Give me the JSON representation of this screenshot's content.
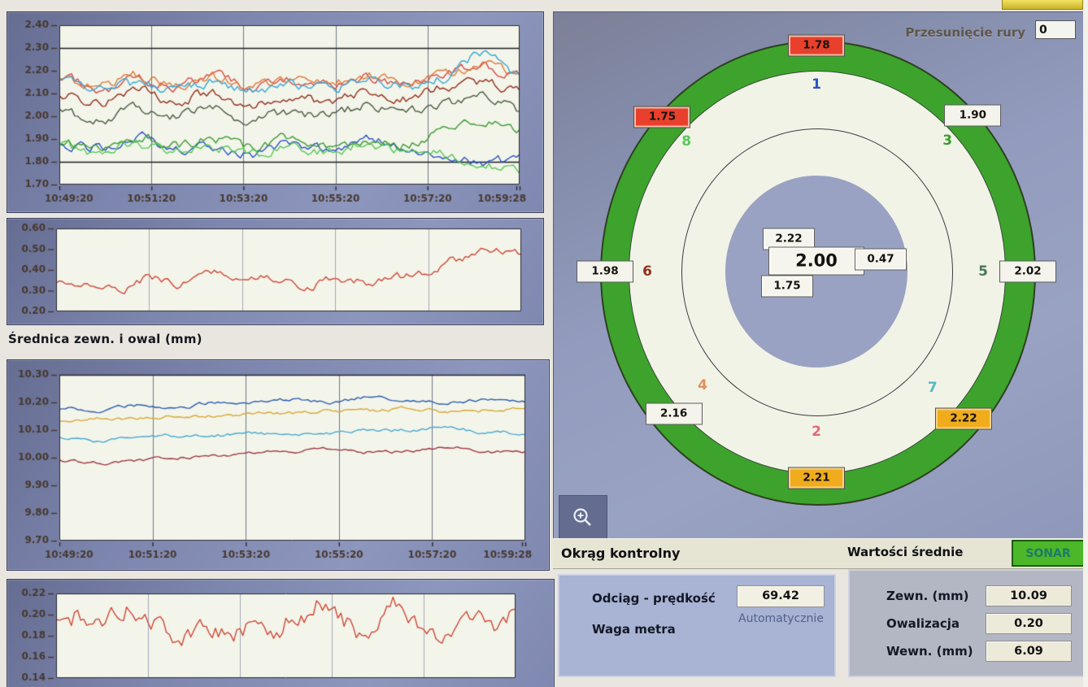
{
  "charts": {
    "xticks": [
      "10:49:20",
      "10:51:20",
      "10:53:20",
      "10:55:20",
      "10:57:20",
      "10:59:28"
    ],
    "wall_thickness": {
      "type": "line",
      "ylim": [
        1.7,
        2.4
      ],
      "yticks": [
        "2.40",
        "2.30",
        "2.20",
        "2.10",
        "2.00",
        "1.90",
        "1.80",
        "1.70"
      ],
      "dark_gridlines": [
        2.3,
        1.8
      ],
      "noise_amp": 0.022,
      "series": [
        {
          "name": "point-1",
          "color": "#2b52c8",
          "values": [
            1.88,
            1.86,
            1.91,
            1.85,
            1.87,
            1.83,
            1.88,
            1.85,
            1.9,
            1.87,
            1.83,
            1.79,
            1.81
          ]
        },
        {
          "name": "point-2",
          "color": "#d84a48",
          "values": [
            2.17,
            2.12,
            2.16,
            2.13,
            2.18,
            2.13,
            2.16,
            2.14,
            2.17,
            2.15,
            2.19,
            2.22,
            2.18
          ]
        },
        {
          "name": "point-3",
          "color": "#3c9a32",
          "values": [
            1.89,
            1.86,
            1.91,
            1.87,
            1.9,
            1.86,
            1.91,
            1.88,
            1.9,
            1.87,
            1.93,
            1.97,
            1.94
          ]
        },
        {
          "name": "point-4",
          "color": "#e07838",
          "values": [
            2.16,
            2.13,
            2.18,
            2.14,
            2.17,
            2.13,
            2.16,
            2.14,
            2.18,
            2.15,
            2.19,
            2.22,
            2.19
          ]
        },
        {
          "name": "point-5",
          "color": "#4a5a40",
          "values": [
            2.02,
            1.98,
            2.04,
            2.0,
            2.03,
            1.98,
            2.02,
            2.0,
            2.05,
            2.02,
            2.06,
            2.09,
            2.03
          ]
        },
        {
          "name": "point-6",
          "color": "#94301e",
          "values": [
            2.1,
            2.06,
            2.12,
            2.07,
            2.1,
            2.05,
            2.09,
            2.06,
            2.1,
            2.08,
            2.12,
            2.15,
            2.1
          ]
        },
        {
          "name": "point-7",
          "color": "#38a8d8",
          "values": [
            2.15,
            2.12,
            2.14,
            2.12,
            2.15,
            2.11,
            2.14,
            2.12,
            2.16,
            2.13,
            2.17,
            2.27,
            2.19
          ]
        },
        {
          "name": "point-8",
          "color": "#58c858",
          "values": [
            1.86,
            1.83,
            1.88,
            1.84,
            1.87,
            1.83,
            1.87,
            1.84,
            1.88,
            1.85,
            1.83,
            1.78,
            1.76
          ]
        }
      ]
    },
    "oval_trend": {
      "type": "line",
      "ylim": [
        0.2,
        0.6
      ],
      "yticks": [
        "0.60",
        "0.50",
        "0.40",
        "0.30",
        "0.20"
      ],
      "dark_gridlines": [],
      "noise_amp": 0.02,
      "series": [
        {
          "name": "owal",
          "color": "#d04838",
          "values": [
            0.33,
            0.34,
            0.3,
            0.36,
            0.33,
            0.39,
            0.34,
            0.36,
            0.31,
            0.36,
            0.34,
            0.37,
            0.39,
            0.45,
            0.5,
            0.48
          ]
        }
      ]
    },
    "diameter": {
      "label": "Średnica zewn. i owal (mm)",
      "type": "line",
      "ylim": [
        9.7,
        10.3
      ],
      "yticks": [
        "10.30",
        "10.20",
        "10.10",
        "10.00",
        "9.90",
        "9.80",
        "9.70"
      ],
      "dark_gridlines": [
        10.3
      ],
      "noise_amp": 0.006,
      "series": [
        {
          "name": "zewn-max",
          "color": "#2c5cb0",
          "values": [
            10.18,
            10.17,
            10.19,
            10.18,
            10.2,
            10.2,
            10.21,
            10.2,
            10.22,
            10.21,
            10.2,
            10.21,
            10.2
          ]
        },
        {
          "name": "zewn-avg",
          "color": "#d8a838",
          "values": [
            10.13,
            10.14,
            10.14,
            10.15,
            10.15,
            10.16,
            10.16,
            10.17,
            10.17,
            10.18,
            10.17,
            10.17,
            10.18
          ]
        },
        {
          "name": "zewn-min",
          "color": "#48a8d0",
          "values": [
            10.07,
            10.06,
            10.08,
            10.08,
            10.08,
            10.09,
            10.08,
            10.09,
            10.1,
            10.1,
            10.11,
            10.09,
            10.09
          ]
        },
        {
          "name": "nominal",
          "color": "#a03848",
          "values": [
            9.99,
            9.98,
            9.99,
            10.0,
            10.01,
            10.02,
            10.02,
            10.03,
            10.02,
            10.02,
            10.04,
            10.02,
            10.02
          ]
        }
      ]
    },
    "weight_trend": {
      "type": "line",
      "ylim": [
        0.14,
        0.22
      ],
      "yticks": [
        "0.22",
        "0.20",
        "0.18",
        "0.16",
        "0.14"
      ],
      "dark_gridlines": [],
      "noise_amp": 0.01,
      "series": [
        {
          "name": "waga",
          "color": "#d04838",
          "values": [
            0.19,
            0.2,
            0.19,
            0.21,
            0.19,
            0.18,
            0.19,
            0.18,
            0.19,
            0.18,
            0.2,
            0.21,
            0.19,
            0.18,
            0.21,
            0.19,
            0.18,
            0.2,
            0.19,
            0.2
          ]
        }
      ]
    }
  },
  "cross_section": {
    "offset_label": "Przesunięcie rury",
    "offset_value": "0",
    "colors": {
      "ring_green": "#3da32c",
      "wall": "#f1f3e6",
      "hole": "#99a2c2"
    },
    "center_values": {
      "secondary_top": "2.22",
      "main": "2.00",
      "aux": "0.47",
      "secondary_bottom": "1.75"
    },
    "points": [
      {
        "num": "1",
        "num_color": "#2b52c8",
        "value": "1.78",
        "status": "alarm",
        "angle": 0,
        "badge_r": 278,
        "num_r": 230
      },
      {
        "num": "3",
        "num_color": "#3c9a32",
        "value": "1.90",
        "status": "normal",
        "angle": 45,
        "badge_r": 272,
        "num_r": 228
      },
      {
        "num": "5",
        "num_color": "#49765a",
        "value": "2.02",
        "status": "normal",
        "angle": 90,
        "badge_r": 260,
        "num_r": 205
      },
      {
        "num": "7",
        "num_color": "#52b8c8",
        "value": "2.22",
        "status": "warn",
        "angle": 135,
        "badge_r": 256,
        "num_r": 202
      },
      {
        "num": "2",
        "num_color": "#e06878",
        "value": "2.21",
        "status": "warn",
        "angle": 180,
        "badge_r": 254,
        "num_r": 197
      },
      {
        "num": "4",
        "num_color": "#e09060",
        "value": "2.16",
        "status": "normal",
        "angle": 225,
        "badge_r": 248,
        "num_r": 198
      },
      {
        "num": "6",
        "num_color": "#94301e",
        "value": "1.98",
        "status": "normal",
        "angle": 270,
        "badge_r": 260,
        "num_r": 208
      },
      {
        "num": "8",
        "num_color": "#58c858",
        "value": "1.75",
        "status": "alarm",
        "angle": 315,
        "badge_r": 268,
        "num_r": 226
      }
    ]
  },
  "footer": {
    "left_title": "Okrąg kontrolny",
    "right_title": "Wartości średnie",
    "sonar_label": "SONAR",
    "sonar_color": "#4cb728"
  },
  "haul_panel": {
    "speed_label": "Odciąg - prędkość",
    "speed_value": "69.42",
    "mode": "Automatycznie",
    "weight_label": "Waga metra"
  },
  "averages_panel": {
    "rows": [
      {
        "label": "Zewn. (mm)",
        "value": "10.09"
      },
      {
        "label": "Owalizacja",
        "value": "0.20"
      },
      {
        "label": "Wewn. (mm)",
        "value": "6.09"
      }
    ]
  },
  "icons": {
    "zoom": "zoom-in-magnifier"
  }
}
